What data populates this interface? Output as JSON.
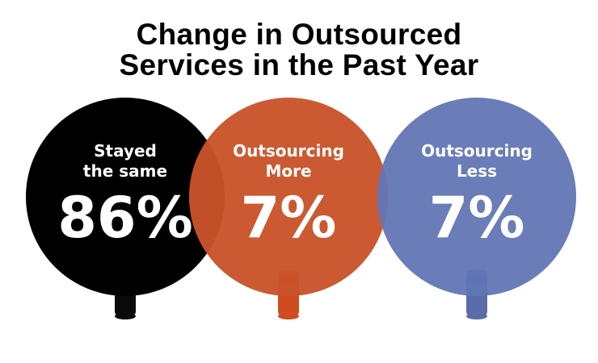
{
  "title_line1": "Change in Outsourced",
  "title_line2": "Services in the Past Year",
  "chart_data": {
    "type": "pie",
    "title": "Change in Outsourced Services in the Past Year",
    "unit": "%",
    "categories": [
      "Stayed the same",
      "Outsourcing More",
      "Outsourcing Less"
    ],
    "values": [
      86,
      7,
      7
    ],
    "value_labels": [
      "86%",
      "7%",
      "7%"
    ],
    "label_lines": [
      [
        "Stayed",
        "the same"
      ],
      [
        "Outsourcing",
        "More"
      ],
      [
        "Outsourcing",
        "Less"
      ]
    ],
    "colors": [
      "#000000",
      "#c9532a",
      "#6276b4"
    ],
    "stem_colors": [
      "#0a0a0a",
      "#d14b1e",
      "#5b6cab"
    ],
    "cap_colors": [
      "#000000",
      "#c8202a",
      "#2c3f8e"
    ]
  }
}
